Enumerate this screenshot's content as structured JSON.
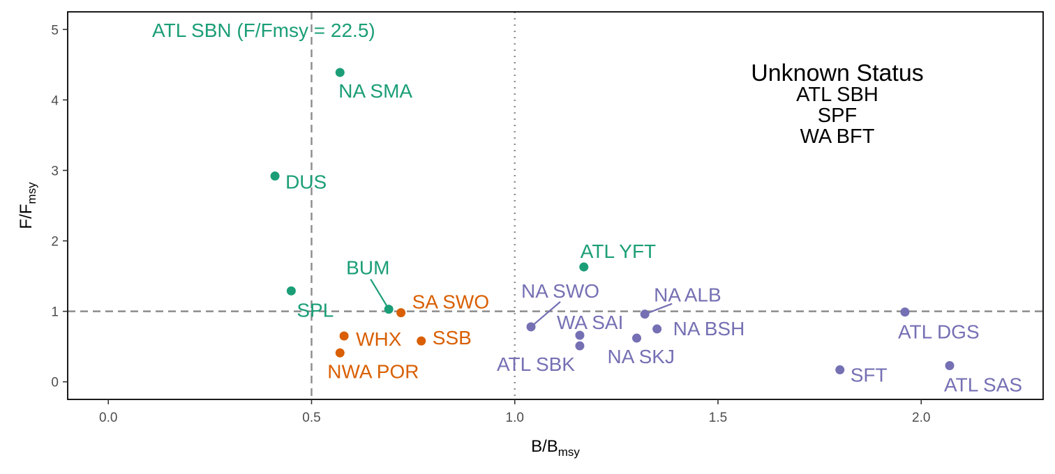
{
  "chart_data": {
    "type": "scatter",
    "x_axis": {
      "label_main": "B/B",
      "label_sub": "msy",
      "range": [
        -0.1,
        2.3
      ],
      "ticks": [
        0.0,
        0.5,
        1.0,
        1.5,
        2.0
      ],
      "tick_labels": [
        "0.0",
        "0.5",
        "1.0",
        "1.5",
        "2.0"
      ]
    },
    "y_axis": {
      "label_main": "F/F",
      "label_sub": "msy",
      "range": [
        -0.25,
        5.25
      ],
      "ticks": [
        0,
        1,
        2,
        3,
        4,
        5
      ],
      "tick_labels": [
        "0",
        "1",
        "2",
        "3",
        "4",
        "5"
      ]
    },
    "grid": false,
    "reference_lines": [
      {
        "orientation": "vertical",
        "value": 0.5,
        "style": "dashed"
      },
      {
        "orientation": "vertical",
        "value": 1.0,
        "style": "dotted"
      },
      {
        "orientation": "horizontal",
        "value": 1.0,
        "style": "dashed"
      }
    ],
    "colors": {
      "green": "#1b9e77",
      "orange": "#d95f02",
      "purple": "#7570b3"
    },
    "points": [
      {
        "name": "NA SMA",
        "x": 0.57,
        "y": 4.39,
        "color": "green"
      },
      {
        "name": "DUS",
        "x": 0.41,
        "y": 2.92,
        "color": "green"
      },
      {
        "name": "SPL",
        "x": 0.45,
        "y": 1.29,
        "color": "green"
      },
      {
        "name": "BUM",
        "x": 0.69,
        "y": 1.03,
        "color": "green"
      },
      {
        "name": "ATL YFT",
        "x": 1.17,
        "y": 1.63,
        "color": "green"
      },
      {
        "name": "SA SWO",
        "x": 0.72,
        "y": 0.98,
        "color": "orange"
      },
      {
        "name": "WHX",
        "x": 0.58,
        "y": 0.65,
        "color": "orange"
      },
      {
        "name": "SSB",
        "x": 0.77,
        "y": 0.58,
        "color": "orange"
      },
      {
        "name": "NWA POR",
        "x": 0.57,
        "y": 0.41,
        "color": "orange"
      },
      {
        "name": "NA SWO",
        "x": 1.04,
        "y": 0.78,
        "color": "purple"
      },
      {
        "name": "NA ALB",
        "x": 1.32,
        "y": 0.96,
        "color": "purple"
      },
      {
        "name": "WA SAI",
        "x": 1.16,
        "y": 0.66,
        "color": "purple"
      },
      {
        "name": "NA BSH",
        "x": 1.35,
        "y": 0.75,
        "color": "purple"
      },
      {
        "name": "ATL SBK",
        "x": 1.16,
        "y": 0.51,
        "color": "purple"
      },
      {
        "name": "NA SKJ",
        "x": 1.3,
        "y": 0.62,
        "color": "purple"
      },
      {
        "name": "ATL DGS",
        "x": 1.96,
        "y": 0.99,
        "color": "purple"
      },
      {
        "name": "SFT",
        "x": 1.8,
        "y": 0.17,
        "color": "purple"
      },
      {
        "name": "ATL SAS",
        "x": 2.07,
        "y": 0.23,
        "color": "purple"
      }
    ],
    "annotations": [
      {
        "text": "ATL SBN (F/Fmsy = 22.5)",
        "color": "green"
      }
    ],
    "unknown_status": {
      "title": "Unknown Status",
      "items": [
        "ATL SBH",
        "SPF",
        "WA BFT"
      ]
    }
  }
}
